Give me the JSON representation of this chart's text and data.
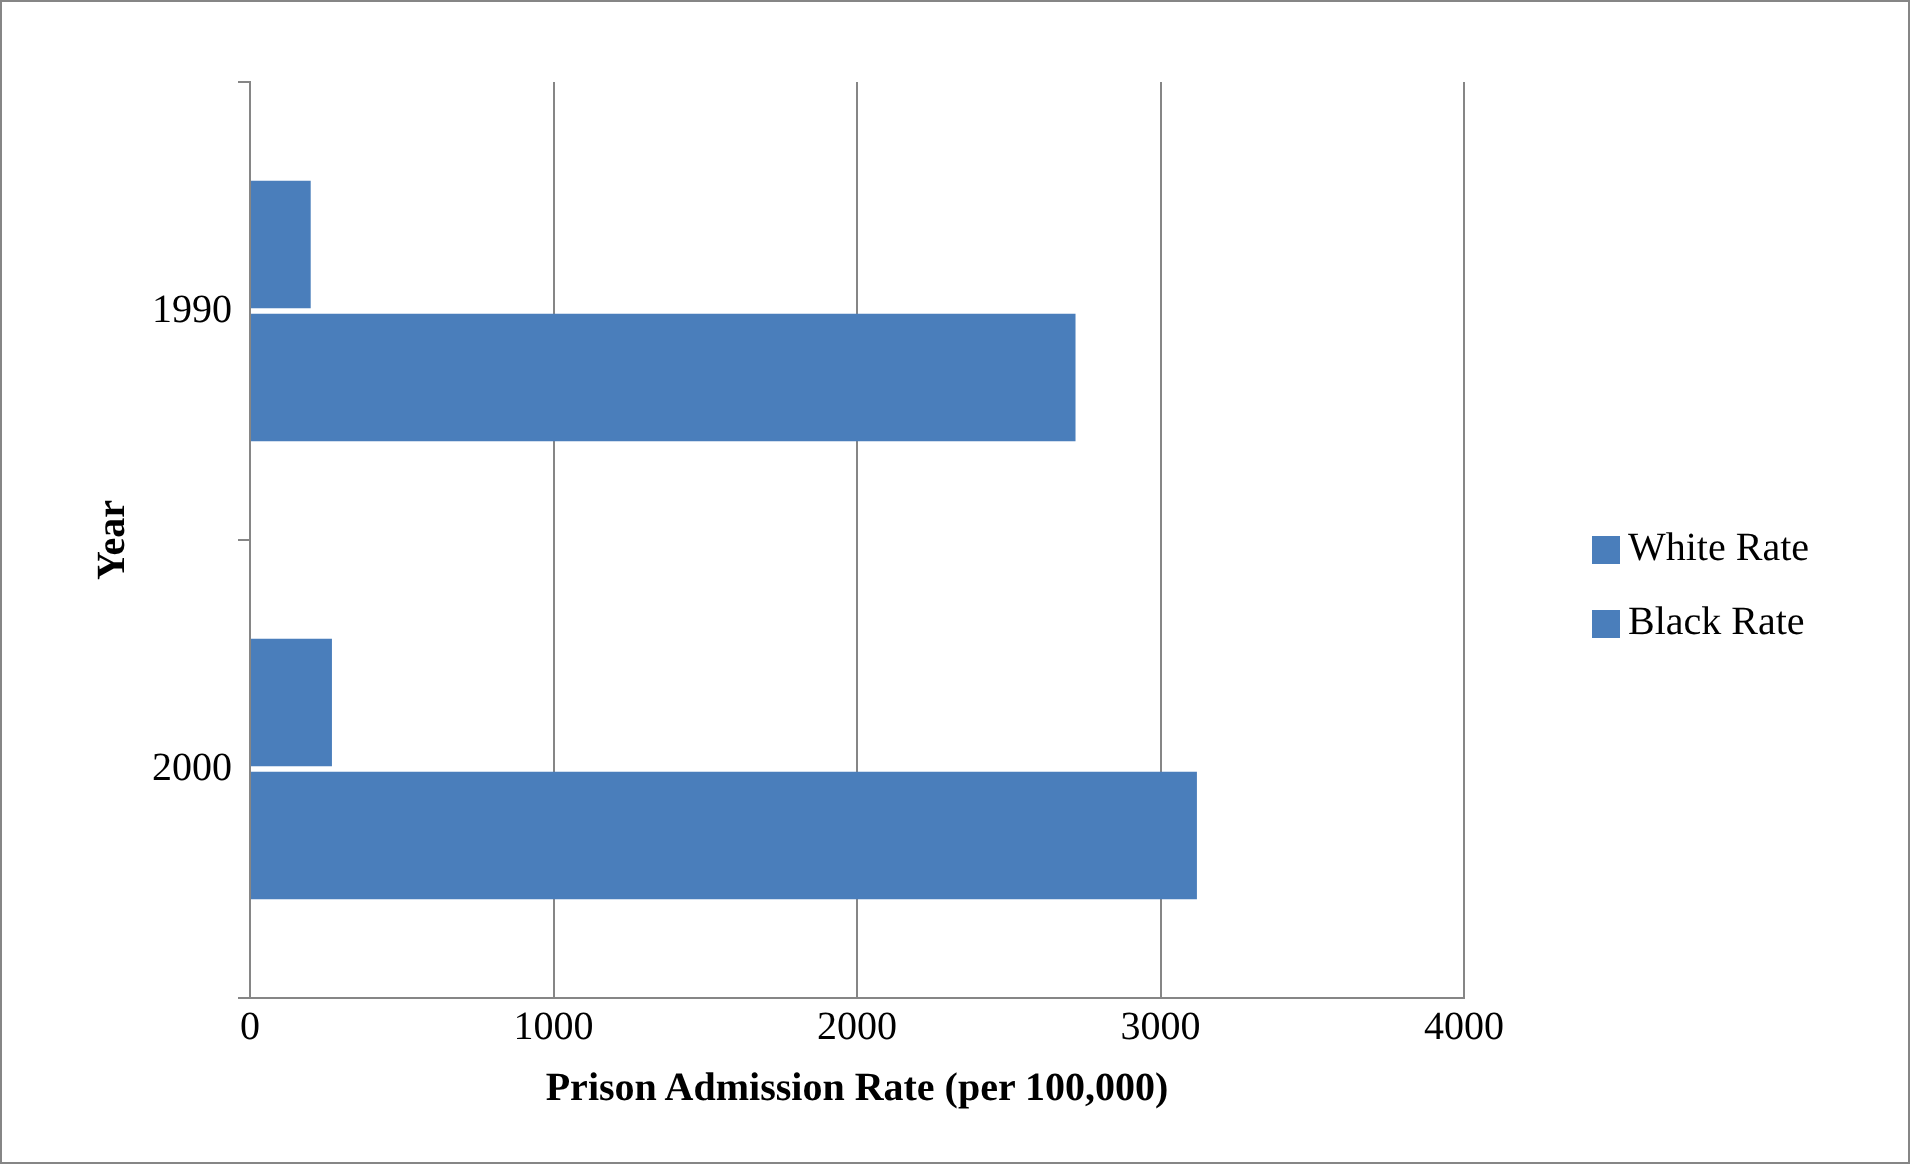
{
  "chart_data": {
    "type": "bar",
    "orientation": "horizontal",
    "xlabel": "Prison Admission Rate (per 100,000)",
    "ylabel": "Year",
    "categories": [
      "1990",
      "2000"
    ],
    "series": [
      {
        "name": "White Rate",
        "color": "#4a7ebb",
        "values": [
          200,
          270
        ]
      },
      {
        "name": "Black Rate",
        "color": "#4a7ebb",
        "values": [
          2720,
          3120
        ]
      }
    ],
    "xlim": [
      0,
      4000
    ],
    "xticks": [
      0,
      1000,
      2000,
      3000,
      4000
    ],
    "grid": "x",
    "legend": "right"
  }
}
